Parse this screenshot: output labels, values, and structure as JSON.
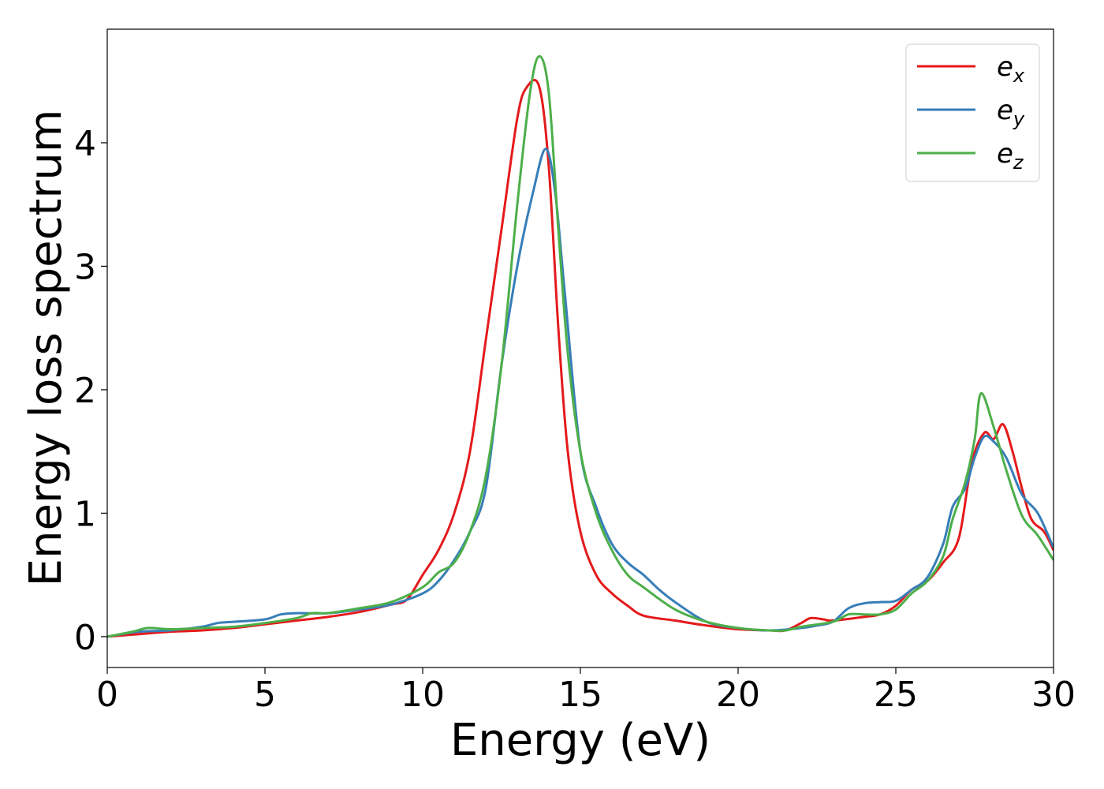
{
  "chart_data": {
    "type": "line",
    "title": "",
    "xlabel": "Energy (eV)",
    "ylabel": "Energy loss spectrum",
    "xlim": [
      0,
      30
    ],
    "ylim": [
      -0.25,
      4.92
    ],
    "xticks": [
      0,
      5,
      10,
      15,
      20,
      25,
      30
    ],
    "yticks": [
      0,
      1,
      2,
      3,
      4
    ],
    "grid": false,
    "legend_position": "top-right",
    "series": [
      {
        "name": "e",
        "subscript": "x",
        "color": "#e41a1c",
        "points": [
          [
            0,
            0
          ],
          [
            1,
            0.02
          ],
          [
            2,
            0.04
          ],
          [
            3,
            0.05
          ],
          [
            4,
            0.07
          ],
          [
            5,
            0.1
          ],
          [
            6,
            0.13
          ],
          [
            7,
            0.16
          ],
          [
            8,
            0.2
          ],
          [
            9,
            0.26
          ],
          [
            9.5,
            0.3
          ],
          [
            10,
            0.5
          ],
          [
            10.5,
            0.7
          ],
          [
            11,
            1.0
          ],
          [
            11.5,
            1.5
          ],
          [
            12,
            2.4
          ],
          [
            12.5,
            3.3
          ],
          [
            13,
            4.2
          ],
          [
            13.3,
            4.45
          ],
          [
            13.7,
            4.45
          ],
          [
            14,
            3.8
          ],
          [
            14.3,
            2.5
          ],
          [
            14.6,
            1.5
          ],
          [
            15,
            0.85
          ],
          [
            15.5,
            0.5
          ],
          [
            16,
            0.35
          ],
          [
            16.5,
            0.25
          ],
          [
            17,
            0.17
          ],
          [
            18,
            0.13
          ],
          [
            19,
            0.09
          ],
          [
            20,
            0.06
          ],
          [
            21,
            0.05
          ],
          [
            21.5,
            0.05
          ],
          [
            22,
            0.11
          ],
          [
            22.3,
            0.15
          ],
          [
            22.7,
            0.14
          ],
          [
            23,
            0.13
          ],
          [
            24,
            0.16
          ],
          [
            24.5,
            0.18
          ],
          [
            25,
            0.25
          ],
          [
            25.5,
            0.38
          ],
          [
            26,
            0.45
          ],
          [
            26.5,
            0.6
          ],
          [
            27,
            0.8
          ],
          [
            27.4,
            1.4
          ],
          [
            27.8,
            1.65
          ],
          [
            28.1,
            1.6
          ],
          [
            28.4,
            1.72
          ],
          [
            28.7,
            1.5
          ],
          [
            29,
            1.2
          ],
          [
            29.3,
            0.95
          ],
          [
            29.7,
            0.85
          ],
          [
            30,
            0.7
          ]
        ]
      },
      {
        "name": "e",
        "subscript": "y",
        "color": "#377eb8",
        "points": [
          [
            0,
            0
          ],
          [
            1,
            0.04
          ],
          [
            2,
            0.05
          ],
          [
            3,
            0.08
          ],
          [
            3.5,
            0.11
          ],
          [
            4,
            0.12
          ],
          [
            5,
            0.14
          ],
          [
            5.5,
            0.18
          ],
          [
            6,
            0.19
          ],
          [
            7,
            0.19
          ],
          [
            8,
            0.22
          ],
          [
            9,
            0.26
          ],
          [
            10,
            0.35
          ],
          [
            10.5,
            0.45
          ],
          [
            11,
            0.62
          ],
          [
            11.5,
            0.85
          ],
          [
            12,
            1.2
          ],
          [
            12.5,
            2.2
          ],
          [
            13,
            3.0
          ],
          [
            13.5,
            3.6
          ],
          [
            13.9,
            3.95
          ],
          [
            14.2,
            3.6
          ],
          [
            14.5,
            2.8
          ],
          [
            15,
            1.5
          ],
          [
            15.5,
            1.05
          ],
          [
            16,
            0.75
          ],
          [
            16.5,
            0.6
          ],
          [
            17,
            0.5
          ],
          [
            17.5,
            0.38
          ],
          [
            18,
            0.28
          ],
          [
            19,
            0.12
          ],
          [
            20,
            0.07
          ],
          [
            21,
            0.05
          ],
          [
            22,
            0.07
          ],
          [
            22.5,
            0.09
          ],
          [
            23,
            0.12
          ],
          [
            23.5,
            0.23
          ],
          [
            24,
            0.27
          ],
          [
            24.5,
            0.28
          ],
          [
            25,
            0.29
          ],
          [
            25.5,
            0.38
          ],
          [
            26,
            0.48
          ],
          [
            26.5,
            0.75
          ],
          [
            26.8,
            1.05
          ],
          [
            27.2,
            1.2
          ],
          [
            27.5,
            1.45
          ],
          [
            27.8,
            1.62
          ],
          [
            28.1,
            1.58
          ],
          [
            28.5,
            1.45
          ],
          [
            29,
            1.15
          ],
          [
            29.5,
            1.0
          ],
          [
            30,
            0.72
          ]
        ]
      },
      {
        "name": "e",
        "subscript": "z",
        "color": "#4daf4a",
        "points": [
          [
            0,
            0
          ],
          [
            0.8,
            0.04
          ],
          [
            1.3,
            0.07
          ],
          [
            2,
            0.06
          ],
          [
            3,
            0.07
          ],
          [
            4,
            0.08
          ],
          [
            5,
            0.11
          ],
          [
            6,
            0.15
          ],
          [
            6.5,
            0.19
          ],
          [
            7,
            0.19
          ],
          [
            8,
            0.23
          ],
          [
            9,
            0.28
          ],
          [
            10,
            0.4
          ],
          [
            10.5,
            0.52
          ],
          [
            11,
            0.6
          ],
          [
            11.5,
            0.85
          ],
          [
            12,
            1.3
          ],
          [
            12.5,
            2.2
          ],
          [
            13,
            3.5
          ],
          [
            13.4,
            4.4
          ],
          [
            13.7,
            4.7
          ],
          [
            14,
            4.4
          ],
          [
            14.3,
            3.3
          ],
          [
            14.6,
            2.3
          ],
          [
            15,
            1.5
          ],
          [
            15.5,
            1.0
          ],
          [
            16,
            0.7
          ],
          [
            16.5,
            0.5
          ],
          [
            17,
            0.4
          ],
          [
            18,
            0.22
          ],
          [
            19,
            0.12
          ],
          [
            20,
            0.07
          ],
          [
            21,
            0.05
          ],
          [
            21.5,
            0.05
          ],
          [
            22,
            0.08
          ],
          [
            23,
            0.12
          ],
          [
            23.5,
            0.18
          ],
          [
            24,
            0.18
          ],
          [
            24.5,
            0.18
          ],
          [
            25,
            0.22
          ],
          [
            25.5,
            0.35
          ],
          [
            26,
            0.45
          ],
          [
            26.5,
            0.65
          ],
          [
            26.8,
            0.95
          ],
          [
            27.2,
            1.25
          ],
          [
            27.5,
            1.6
          ],
          [
            27.7,
            1.97
          ],
          [
            28.1,
            1.7
          ],
          [
            28.5,
            1.35
          ],
          [
            29,
            0.98
          ],
          [
            29.5,
            0.82
          ],
          [
            30,
            0.62
          ]
        ]
      }
    ]
  }
}
